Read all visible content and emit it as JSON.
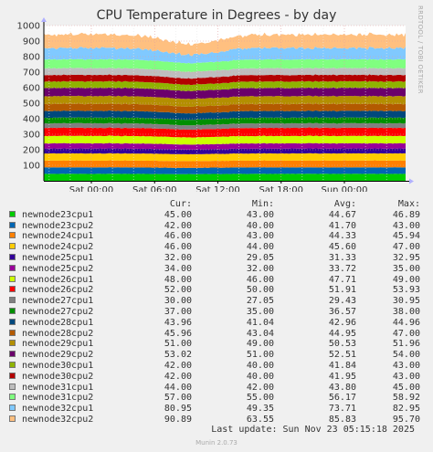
{
  "chart_data": {
    "type": "area",
    "title": "CPU Temperature in Degrees - by day",
    "side_label": "RRDTOOL / TOBI OETIKER",
    "stacked": true,
    "ylim": [
      0,
      1000
    ],
    "y_ticks": [
      100,
      200,
      300,
      400,
      500,
      600,
      700,
      800,
      900,
      1000
    ],
    "x_ticks": [
      "Sat 00:00",
      "Sat 06:00",
      "Sat 12:00",
      "Sat 18:00",
      "Sun 00:00"
    ],
    "grid": true,
    "legend_position": "bottom",
    "columns": [
      "Cur:",
      "Min:",
      "Avg:",
      "Max:"
    ],
    "series": [
      {
        "name": "newnode23cpu1",
        "color": "#00cc00",
        "cur": "45.00",
        "min": "43.00",
        "avg": "44.67",
        "max": "46.89"
      },
      {
        "name": "newnode23cpu2",
        "color": "#0066b3",
        "cur": "42.00",
        "min": "40.00",
        "avg": "41.70",
        "max": "43.00"
      },
      {
        "name": "newnode24cpu1",
        "color": "#ff8000",
        "cur": "46.00",
        "min": "43.00",
        "avg": "44.33",
        "max": "45.94"
      },
      {
        "name": "newnode24cpu2",
        "color": "#ffcc00",
        "cur": "46.00",
        "min": "44.00",
        "avg": "45.60",
        "max": "47.00"
      },
      {
        "name": "newnode25cpu1",
        "color": "#330099",
        "cur": "32.00",
        "min": "29.05",
        "avg": "31.33",
        "max": "32.95"
      },
      {
        "name": "newnode25cpu2",
        "color": "#990099",
        "cur": "34.00",
        "min": "32.00",
        "avg": "33.72",
        "max": "35.00"
      },
      {
        "name": "newnode26cpu1",
        "color": "#ccff00",
        "cur": "48.00",
        "min": "46.00",
        "avg": "47.71",
        "max": "49.00"
      },
      {
        "name": "newnode26cpu2",
        "color": "#ff0000",
        "cur": "52.00",
        "min": "50.00",
        "avg": "51.91",
        "max": "53.93"
      },
      {
        "name": "newnode27cpu1",
        "color": "#808080",
        "cur": "30.00",
        "min": "27.05",
        "avg": "29.43",
        "max": "30.95"
      },
      {
        "name": "newnode27cpu2",
        "color": "#008f00",
        "cur": "37.00",
        "min": "35.00",
        "avg": "36.57",
        "max": "38.00"
      },
      {
        "name": "newnode28cpu1",
        "color": "#00487d",
        "cur": "43.96",
        "min": "41.04",
        "avg": "42.96",
        "max": "44.96"
      },
      {
        "name": "newnode28cpu2",
        "color": "#b35a00",
        "cur": "45.96",
        "min": "43.04",
        "avg": "44.95",
        "max": "47.00"
      },
      {
        "name": "newnode29cpu1",
        "color": "#b38f00",
        "cur": "51.00",
        "min": "49.00",
        "avg": "50.53",
        "max": "51.96"
      },
      {
        "name": "newnode29cpu2",
        "color": "#6b006b",
        "cur": "53.02",
        "min": "51.00",
        "avg": "52.51",
        "max": "54.00"
      },
      {
        "name": "newnode30cpu1",
        "color": "#8fb300",
        "cur": "42.00",
        "min": "40.00",
        "avg": "41.84",
        "max": "43.00"
      },
      {
        "name": "newnode30cpu2",
        "color": "#b30000",
        "cur": "42.00",
        "min": "40.00",
        "avg": "41.95",
        "max": "43.00"
      },
      {
        "name": "newnode31cpu1",
        "color": "#bebebe",
        "cur": "44.00",
        "min": "42.00",
        "avg": "43.80",
        "max": "45.00"
      },
      {
        "name": "newnode31cpu2",
        "color": "#80ff80",
        "cur": "57.00",
        "min": "55.00",
        "avg": "56.17",
        "max": "58.92"
      },
      {
        "name": "newnode32cpu1",
        "color": "#80c9ff",
        "cur": "80.95",
        "min": "49.35",
        "avg": "73.71",
        "max": "82.95"
      },
      {
        "name": "newnode32cpu2",
        "color": "#ffc080",
        "cur": "90.89",
        "min": "63.55",
        "avg": "85.83",
        "max": "95.70"
      }
    ]
  },
  "footer": {
    "last_update": "Last update: Sun Nov 23 05:15:18 2025",
    "version": "Munin 2.0.73"
  }
}
